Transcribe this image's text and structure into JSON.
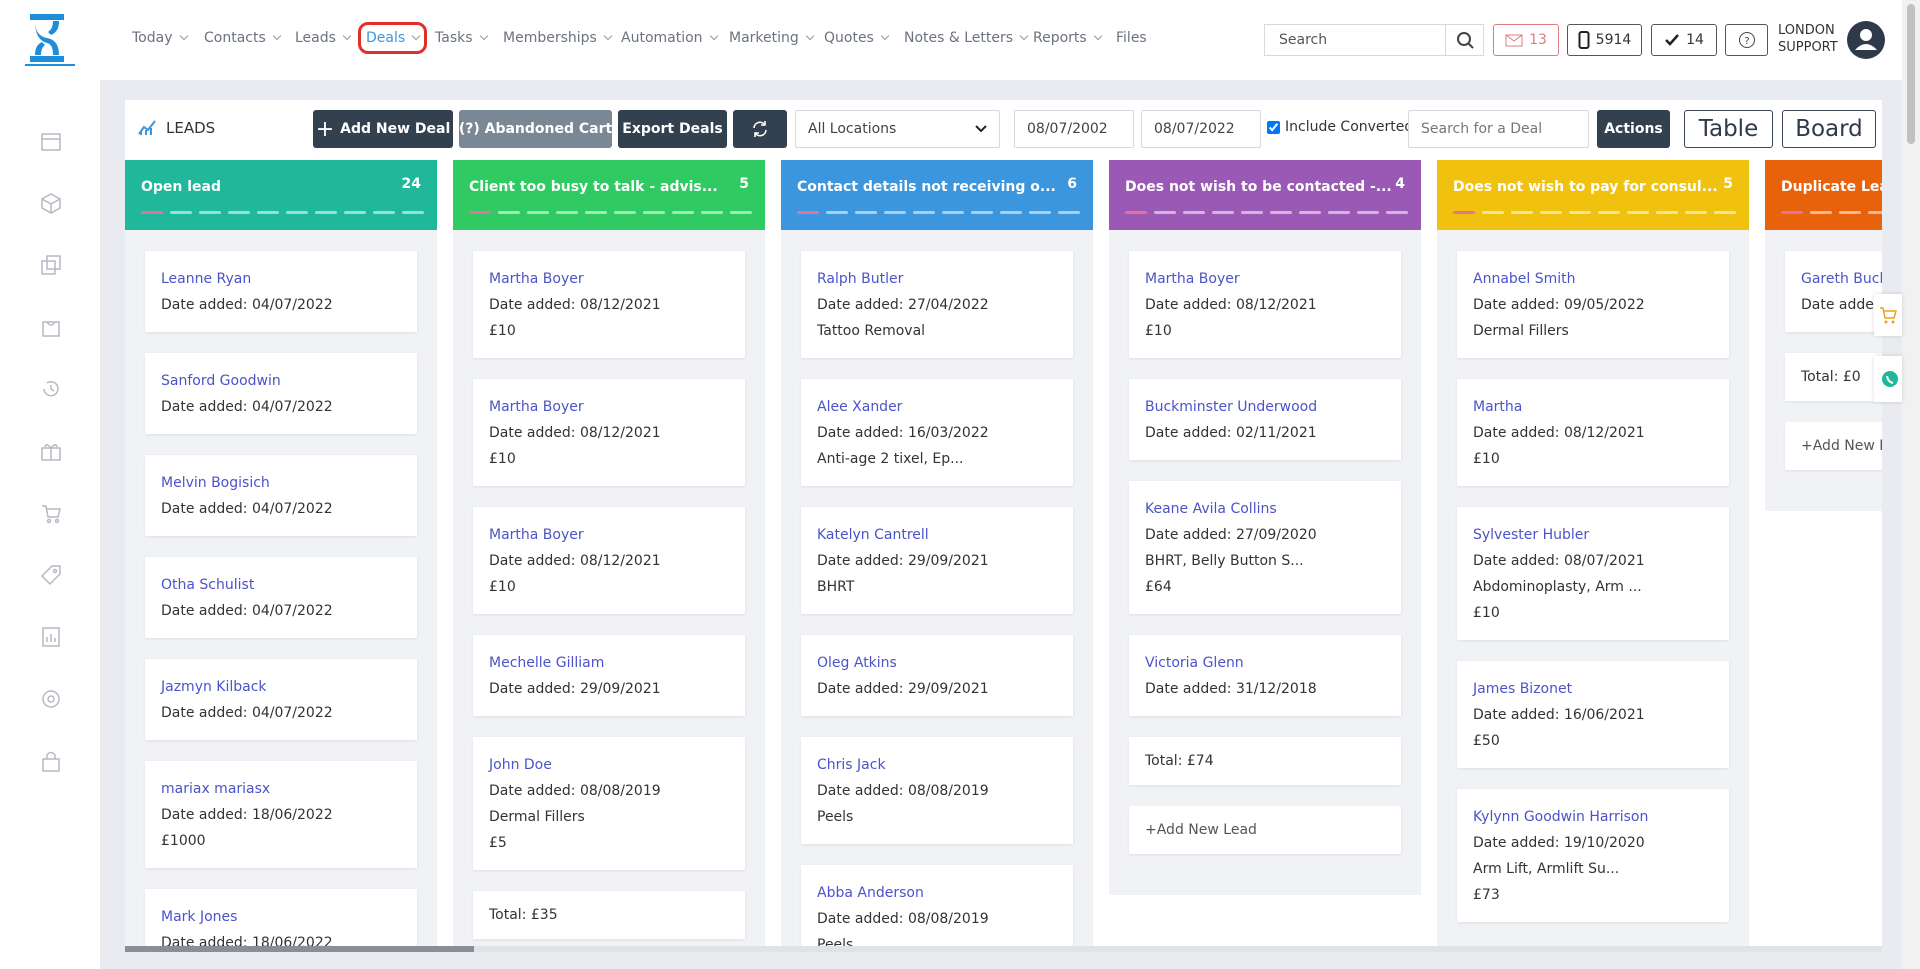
{
  "nav": {
    "items": [
      "Today",
      "Contacts",
      "Leads",
      "Deals",
      "Tasks",
      "Memberships",
      "Automation",
      "Marketing",
      "Quotes",
      "Notes & Letters",
      "Reports",
      "Files"
    ],
    "active": 3,
    "search_placeholder": "Search",
    "mail_count": "13",
    "phone_count": "5914",
    "task_count": "14",
    "user_line1": "LONDON",
    "user_line2": "SUPPORT"
  },
  "toolbar": {
    "title": "LEADS",
    "add_button": "Add New Deal",
    "cart_button": "(?) Abandoned Cart",
    "export_button": "Export Deals",
    "location": "All Locations",
    "date_from": "08/07/2002",
    "date_to": "08/07/2022",
    "include_converted": "Include Converted",
    "deal_search_placeholder": "Search for a Deal",
    "actions": "Actions",
    "table_view": "Table",
    "board_view": "Board"
  },
  "board": {
    "date_label": "Date added:",
    "total_label": "Total:",
    "add_lead": "+Add New Lead",
    "columns": [
      {
        "title": "Open lead",
        "count": "24",
        "color": "#1fb89a",
        "cards": [
          {
            "name": "Leanne Ryan",
            "date": "04/07/2022"
          },
          {
            "name": "Sanford Goodwin",
            "date": "04/07/2022"
          },
          {
            "name": "Melvin Bogisich",
            "date": "04/07/2022"
          },
          {
            "name": "Otha Schulist",
            "date": "04/07/2022"
          },
          {
            "name": "Jazmyn Kilback",
            "date": "04/07/2022"
          },
          {
            "name": "mariax mariasx",
            "date": "18/06/2022",
            "amount": "£1000"
          },
          {
            "name": "Mark Jones",
            "date": "18/06/2022"
          }
        ]
      },
      {
        "title": "Client too busy to talk - advis...",
        "count": "5",
        "color": "#2fcb62",
        "cards": [
          {
            "name": "Martha Boyer",
            "date": "08/12/2021",
            "amount": "£10"
          },
          {
            "name": "Martha Boyer",
            "date": "08/12/2021",
            "amount": "£10"
          },
          {
            "name": "Martha Boyer",
            "date": "08/12/2021",
            "amount": "£10"
          },
          {
            "name": "Mechelle Gilliam",
            "date": "29/09/2021"
          },
          {
            "name": "John Doe",
            "date": "08/08/2019",
            "treatment": "Dermal Fillers",
            "amount": "£5"
          }
        ],
        "total": "£35"
      },
      {
        "title": "Contact details not receiving o...",
        "count": "6",
        "color": "#3b96de",
        "cards": [
          {
            "name": "Ralph Butler",
            "date": "27/04/2022",
            "treatment": "Tattoo Removal"
          },
          {
            "name": "Alee Xander",
            "date": "16/03/2022",
            "treatment": "Anti-age 2 tixel, Ep..."
          },
          {
            "name": "Katelyn Cantrell",
            "date": "29/09/2021",
            "treatment": "BHRT"
          },
          {
            "name": "Oleg Atkins",
            "date": "29/09/2021"
          },
          {
            "name": "Chris Jack",
            "date": "08/08/2019",
            "treatment": "Peels"
          },
          {
            "name": "Abba Anderson",
            "date": "08/08/2019",
            "treatment": "Peels"
          }
        ]
      },
      {
        "title": "Does not wish to be contacted -...",
        "count": "4",
        "color": "#9b59b6",
        "cards": [
          {
            "name": "Martha Boyer",
            "date": "08/12/2021",
            "amount": "£10"
          },
          {
            "name": "Buckminster Underwood",
            "date": "02/11/2021"
          },
          {
            "name": "Keane Avila Collins",
            "date": "27/09/2020",
            "treatment": "BHRT, Belly Button S...",
            "amount": "£64"
          },
          {
            "name": "Victoria Glenn",
            "date": "31/12/2018"
          }
        ],
        "total": "£74",
        "add": true
      },
      {
        "title": "Does not wish to pay for consul...",
        "count": "5",
        "color": "#f0c20f",
        "cards": [
          {
            "name": "Annabel Smith",
            "date": "09/05/2022",
            "treatment": "Dermal Fillers"
          },
          {
            "name": "Martha",
            "date": "08/12/2021",
            "amount": "£10"
          },
          {
            "name": "Sylvester Hubler",
            "date": "08/07/2021",
            "treatment": "Abdominoplasty, Arm ...",
            "amount": "£10"
          },
          {
            "name": "James Bizonet",
            "date": "16/06/2021",
            "amount": "£50"
          },
          {
            "name": "Kylynn Goodwin Harrison",
            "date": "19/10/2020",
            "treatment": "Arm Lift, Armlift Su...",
            "amount": "£73"
          }
        ]
      },
      {
        "title": "Duplicate Lead",
        "color": "#e8620c",
        "cards": [
          {
            "name": "Gareth Buck",
            "date": null
          }
        ],
        "total": "£0",
        "add": true
      }
    ]
  }
}
